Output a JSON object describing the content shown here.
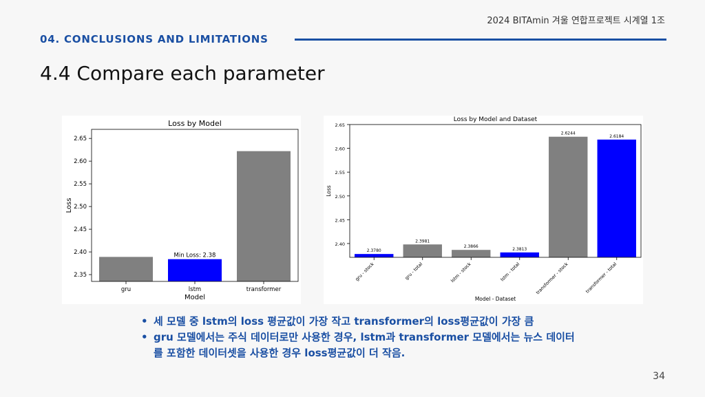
{
  "header": {
    "note": "2024 BITAmin 겨울 연합프로젝트 시계열 1조",
    "section": "04. CONCLUSIONS AND LIMITATIONS",
    "title": "4.4 Compare each parameter"
  },
  "colors": {
    "accent": "#1a4fa3",
    "gray_bar": "#808080",
    "blue_bar": "#0000ff"
  },
  "chart_data": [
    {
      "type": "bar",
      "title": "Loss by Model",
      "xlabel": "Model",
      "ylabel": "Loss",
      "categories": [
        "gru",
        "lstm",
        "transformer"
      ],
      "values": [
        2.389,
        2.384,
        2.622
      ],
      "bar_colors": [
        "#808080",
        "#0000ff",
        "#808080"
      ],
      "ylim": [
        2.335,
        2.67
      ],
      "yticks": [
        2.35,
        2.4,
        2.45,
        2.5,
        2.55,
        2.6,
        2.65
      ],
      "annotation": {
        "text": "Min Loss: 2.38",
        "category": "lstm"
      }
    },
    {
      "type": "bar",
      "title": "Loss by Model and Dataset",
      "xlabel": "Model - Dataset",
      "ylabel": "Loss",
      "categories": [
        "gru - stock",
        "gru - total",
        "lstm - stock",
        "lstm - total",
        "transformer - stock",
        "transformer - total"
      ],
      "values": [
        2.378,
        2.3981,
        2.3866,
        2.3813,
        2.6244,
        2.6184
      ],
      "value_labels": [
        "2.3780",
        "2.3981",
        "2.3866",
        "2.3813",
        "2.6244",
        "2.6184"
      ],
      "bar_colors": [
        "#0000ff",
        "#808080",
        "#808080",
        "#0000ff",
        "#808080",
        "#0000ff"
      ],
      "ylim": [
        2.371,
        2.65
      ],
      "yticks": [
        2.4,
        2.45,
        2.5,
        2.55,
        2.6,
        2.65
      ]
    }
  ],
  "bullets": [
    "세 모델 중 lstm의 loss 평균값이 가장 작고 transformer의 loss평균값이 가장 큼",
    "gru 모델에서는 주식 데이터로만 사용한 경우, lstm과 transformer 모델에서는 뉴스 데이터를 포함한 데이터셋을 사용한 경우 loss평균값이 더 작음."
  ],
  "page_number": "34"
}
